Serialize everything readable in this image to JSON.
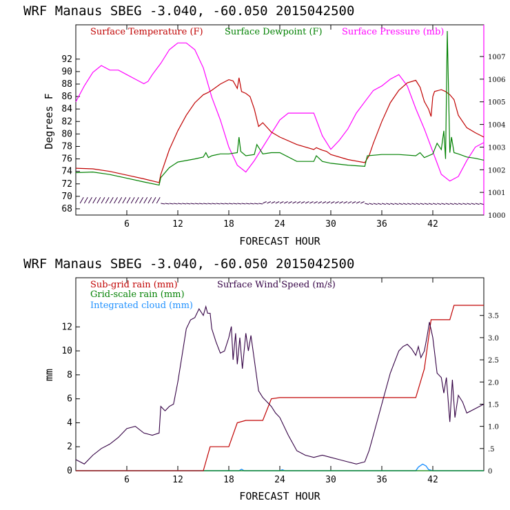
{
  "panels": {
    "top": {
      "title": "WRF  Manaus SBEG   -3.040, -60.050  2015042500",
      "ylabel": "Degrees F",
      "xlabel": "FORECAST HOUR",
      "legend": [
        "Surface Temperature (F)",
        "Surface Dewpoint (F)",
        "Surface Pressure (mb)"
      ]
    },
    "bottom": {
      "title": "WRF  Manaus SBEG   -3.040, -60.050  2015042500",
      "ylabel": "mm",
      "xlabel": "FORECAST HOUR",
      "legend": [
        "Sub-grid rain (mm)",
        "Surface Wind Speed (m/s)",
        "Grid-scale rain (mm)",
        "Integrated cloud (mm)"
      ]
    }
  },
  "chart_data": [
    {
      "type": "line",
      "title": "WRF  Manaus SBEG   -3.040, -60.050  2015042500",
      "xlabel": "FORECAST HOUR",
      "ylabel": "Degrees F",
      "y2label": "Surface Pressure (mb)",
      "xlim": [
        0,
        48
      ],
      "ylim": [
        67,
        97.5
      ],
      "y2lim": [
        1000,
        1008.4
      ],
      "xticks": [
        "6",
        "12",
        "18",
        "24",
        "30",
        "36",
        "42"
      ],
      "xtick_values": [
        6,
        12,
        18,
        24,
        30,
        36,
        42
      ],
      "yticks": [
        "68",
        "70",
        "72",
        "74",
        "76",
        "78",
        "80",
        "82",
        "84",
        "86",
        "88",
        "90",
        "92"
      ],
      "ytick_values": [
        68,
        70,
        72,
        74,
        76,
        78,
        80,
        82,
        84,
        86,
        88,
        90,
        92
      ],
      "y2ticks": [
        "1000",
        "1001",
        "1002",
        "1003",
        "1004",
        "1005",
        "1006",
        "1007"
      ],
      "y2tick_values": [
        1000,
        1001,
        1002,
        1003,
        1004,
        1005,
        1006,
        1007
      ],
      "series": [
        {
          "name": "Surface Temperature (F)",
          "color": "#c00000",
          "axis": "left",
          "x": [
            0,
            2,
            4,
            6,
            8,
            9.8,
            10,
            11,
            12,
            13,
            14,
            15,
            15.5,
            16,
            17,
            18,
            18.5,
            19,
            19.2,
            19.5,
            20,
            20.5,
            21,
            21.5,
            22,
            23,
            24,
            26,
            28,
            28.3,
            29,
            29.5,
            30,
            32,
            34,
            34.5,
            35,
            36,
            37,
            38,
            39,
            40,
            40.5,
            41,
            41.5,
            41.8,
            42,
            42.2,
            43,
            43.5,
            44,
            44.5,
            45,
            46,
            47,
            48
          ],
          "y": [
            74.5,
            74.4,
            74.0,
            73.4,
            72.8,
            72.2,
            73.5,
            77.5,
            80.5,
            83.0,
            85.0,
            86.3,
            86.6,
            87.0,
            88.0,
            88.7,
            88.5,
            87.3,
            89.0,
            86.8,
            86.5,
            86.0,
            84.0,
            81.2,
            81.8,
            80.3,
            79.5,
            78.3,
            77.5,
            77.8,
            77.4,
            77.2,
            76.7,
            75.9,
            75.4,
            76.5,
            78.5,
            82.0,
            85.0,
            87.0,
            88.2,
            88.6,
            87.5,
            85.2,
            84.0,
            82.8,
            86.0,
            86.8,
            87.1,
            86.8,
            86.3,
            85.5,
            83.0,
            81.0,
            80.2,
            79.5
          ]
        },
        {
          "name": "Surface Dewpoint (F)",
          "color": "#008000",
          "axis": "left",
          "x": [
            0,
            2,
            4,
            6,
            8,
            9.8,
            10,
            11,
            12,
            14,
            15,
            15.3,
            15.6,
            16,
            17,
            18,
            19,
            19.2,
            19.4,
            20,
            21,
            21.3,
            22,
            23,
            24,
            26,
            28,
            28.3,
            29,
            30,
            32,
            34,
            34.3,
            36,
            38,
            40,
            40.5,
            41,
            42,
            42.5,
            43,
            43.3,
            43.5,
            43.7,
            44,
            44.2,
            44.5,
            45,
            46,
            47,
            48
          ],
          "y": [
            73.8,
            73.9,
            73.5,
            72.9,
            72.3,
            71.8,
            73.0,
            74.6,
            75.5,
            76.0,
            76.3,
            77.0,
            76.2,
            76.5,
            76.8,
            76.8,
            77.0,
            79.5,
            77.2,
            76.5,
            76.7,
            78.3,
            76.8,
            77.0,
            77.0,
            75.6,
            75.6,
            76.5,
            75.6,
            75.3,
            75.0,
            74.8,
            76.5,
            76.7,
            76.7,
            76.5,
            77.0,
            76.2,
            76.8,
            78.5,
            77.5,
            80.5,
            76.0,
            96.5,
            77.0,
            79.5,
            77.0,
            76.8,
            76.3,
            76.1,
            75.8
          ]
        },
        {
          "name": "Surface Pressure (mb)",
          "color": "#ff00ff",
          "axis": "right",
          "x": [
            0,
            1,
            2,
            3,
            4,
            5,
            6,
            7,
            8,
            8.5,
            9,
            10,
            11,
            12,
            13,
            14,
            15,
            16,
            17,
            18,
            19,
            20,
            21,
            22,
            23,
            24,
            25,
            26,
            27,
            28,
            29,
            30,
            31,
            32,
            33,
            34,
            35,
            36,
            37,
            38,
            39,
            40,
            41,
            42,
            43,
            44,
            45,
            46,
            47,
            48
          ],
          "y": [
            1005.0,
            1005.7,
            1006.3,
            1006.6,
            1006.4,
            1006.4,
            1006.2,
            1006.0,
            1005.8,
            1005.9,
            1006.2,
            1006.7,
            1007.3,
            1007.6,
            1007.6,
            1007.3,
            1006.5,
            1005.2,
            1004.2,
            1003.0,
            1002.2,
            1001.9,
            1002.4,
            1003.0,
            1003.6,
            1004.2,
            1004.5,
            1004.5,
            1004.5,
            1004.5,
            1003.5,
            1002.9,
            1003.3,
            1003.8,
            1004.5,
            1005.0,
            1005.5,
            1005.7,
            1006.0,
            1006.2,
            1005.7,
            1004.7,
            1003.8,
            1002.8,
            1001.8,
            1001.5,
            1001.7,
            1002.4,
            1003.0,
            1003.2
          ]
        }
      ]
    },
    {
      "type": "line",
      "title": "WRF  Manaus SBEG   -3.040, -60.050  2015042500",
      "xlabel": "FORECAST HOUR",
      "ylabel": "mm",
      "y2label": "Surface Wind Speed (m/s)",
      "xlim": [
        0,
        48
      ],
      "ylim": [
        0,
        16.1
      ],
      "y2lim": [
        0,
        4.35
      ],
      "xticks": [
        "6",
        "12",
        "18",
        "24",
        "30",
        "36",
        "42"
      ],
      "xtick_values": [
        6,
        12,
        18,
        24,
        30,
        36,
        42
      ],
      "yticks": [
        "0",
        "2",
        "4",
        "6",
        "8",
        "10",
        "12"
      ],
      "ytick_values": [
        0,
        2,
        4,
        6,
        8,
        10,
        12
      ],
      "y2ticks": [
        "0",
        ".5",
        "1.0",
        "1.5",
        "2.0",
        "2.5",
        "3.0",
        "3.5"
      ],
      "y2tick_values": [
        0,
        0.5,
        1.0,
        1.5,
        2.0,
        2.5,
        3.0,
        3.5
      ],
      "series": [
        {
          "name": "Sub-grid rain (mm)",
          "color": "#c00000",
          "axis": "left",
          "x": [
            0,
            15.0,
            15.8,
            18.0,
            19.0,
            20.0,
            22.0,
            23.0,
            24.0,
            34.0,
            40.0,
            41.0,
            41.8,
            44.0,
            44.5,
            48.0
          ],
          "y": [
            0,
            0,
            2.0,
            2.0,
            4.0,
            4.2,
            4.2,
            6.0,
            6.1,
            6.1,
            6.1,
            8.5,
            12.6,
            12.6,
            13.8,
            13.8
          ]
        },
        {
          "name": "Surface Wind Speed (m/s)",
          "color": "#330044",
          "axis": "right",
          "x": [
            0,
            1,
            2,
            3,
            4,
            5,
            6,
            7,
            8,
            9,
            9.8,
            10,
            10.5,
            11,
            11.5,
            12,
            12.5,
            13,
            13.5,
            14,
            14.5,
            15,
            15.3,
            15.5,
            15.8,
            16,
            16.5,
            17,
            17.5,
            18,
            18.3,
            18.5,
            18.8,
            19,
            19.3,
            19.6,
            20,
            20.3,
            20.6,
            21,
            21.5,
            22,
            22.5,
            23,
            23.5,
            24,
            25,
            26,
            27,
            28,
            29,
            30,
            31,
            32,
            33,
            34,
            34.5,
            35,
            36,
            37,
            38,
            38.5,
            39,
            39.5,
            40,
            40.3,
            40.6,
            41,
            41.3,
            41.6,
            42,
            42.5,
            43,
            43.3,
            43.6,
            44,
            44.3,
            44.6,
            45,
            45.5,
            46,
            47,
            48
          ],
          "y": [
            0.25,
            0.15,
            0.35,
            0.5,
            0.6,
            0.75,
            0.95,
            1.0,
            0.85,
            0.8,
            0.85,
            1.45,
            1.35,
            1.45,
            1.5,
            2.0,
            2.6,
            3.2,
            3.4,
            3.45,
            3.65,
            3.5,
            3.7,
            3.55,
            3.55,
            3.2,
            2.9,
            2.65,
            2.7,
            3.0,
            3.25,
            2.5,
            3.1,
            2.4,
            3.0,
            2.3,
            3.1,
            2.7,
            3.05,
            2.5,
            1.8,
            1.65,
            1.55,
            1.45,
            1.3,
            1.2,
            0.8,
            0.45,
            0.35,
            0.3,
            0.35,
            0.3,
            0.25,
            0.2,
            0.15,
            0.2,
            0.45,
            0.8,
            1.5,
            2.2,
            2.7,
            2.8,
            2.85,
            2.75,
            2.6,
            2.8,
            2.55,
            2.7,
            3.0,
            3.35,
            3.0,
            2.2,
            2.1,
            1.75,
            2.1,
            1.1,
            2.05,
            1.2,
            1.7,
            1.55,
            1.3,
            1.4,
            1.5
          ]
        },
        {
          "name": "Grid-scale rain (mm)",
          "color": "#008000",
          "axis": "left",
          "x": [
            0,
            48
          ],
          "y": [
            0,
            0
          ]
        },
        {
          "name": "Integrated cloud (mm)",
          "color": "#1e90ff",
          "axis": "left",
          "x": [
            0,
            19.2,
            19.5,
            19.8,
            24,
            24.3,
            24.6,
            40,
            40.3,
            40.8,
            41.2,
            41.5,
            42,
            48
          ],
          "y": [
            0,
            0,
            0.12,
            0,
            0,
            0.08,
            0,
            0,
            0.3,
            0.55,
            0.4,
            0.1,
            0,
            0
          ]
        }
      ]
    }
  ]
}
